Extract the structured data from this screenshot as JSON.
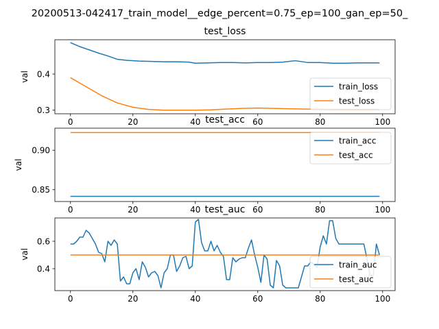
{
  "suptitle": "20200513-042417_train_model__edge_percent=0.75_ep=100_gan_ep=50_",
  "colors": {
    "series1": "#1f77b4",
    "series2": "#ff7f0e"
  },
  "chart_data": [
    {
      "type": "line",
      "title": "test_loss",
      "ylabel": "val",
      "xlabel": "",
      "xlim": [
        -5,
        104
      ],
      "ylim": [
        0.29,
        0.495
      ],
      "xticks": [
        0,
        20,
        40,
        60,
        80,
        100
      ],
      "yticks": [
        0.3,
        0.4
      ],
      "ytick_labels": [
        "0.3",
        "0.4"
      ],
      "legend": "lower-right",
      "series": [
        {
          "name": "train_loss",
          "color": "#1f77b4",
          "x": [
            0,
            3,
            6,
            9,
            12,
            15,
            18,
            22,
            26,
            30,
            34,
            38,
            40,
            44,
            48,
            52,
            56,
            60,
            64,
            68,
            72,
            76,
            80,
            84,
            88,
            92,
            96,
            99
          ],
          "y": [
            0.487,
            0.476,
            0.467,
            0.458,
            0.45,
            0.441,
            0.438,
            0.436,
            0.435,
            0.434,
            0.434,
            0.433,
            0.43,
            0.431,
            0.432,
            0.432,
            0.431,
            0.432,
            0.432,
            0.433,
            0.437,
            0.432,
            0.432,
            0.43,
            0.43,
            0.431,
            0.431,
            0.431
          ]
        },
        {
          "name": "test_loss",
          "color": "#ff7f0e",
          "x": [
            0,
            5,
            10,
            15,
            20,
            25,
            30,
            35,
            40,
            45,
            50,
            55,
            60,
            65,
            70,
            75,
            80,
            85,
            90,
            95,
            99
          ],
          "y": [
            0.39,
            0.365,
            0.34,
            0.32,
            0.308,
            0.302,
            0.3,
            0.3,
            0.3,
            0.301,
            0.303,
            0.305,
            0.306,
            0.305,
            0.304,
            0.303,
            0.303,
            0.302,
            0.302,
            0.302,
            0.302
          ]
        }
      ]
    },
    {
      "type": "line",
      "title": "test_acc",
      "ylabel": "val",
      "xlabel": "",
      "xlim": [
        -5,
        104
      ],
      "ylim": [
        0.835,
        0.928
      ],
      "xticks": [
        0,
        20,
        40,
        60,
        80,
        100
      ],
      "yticks": [
        0.85,
        0.9
      ],
      "ytick_labels": [
        "0.85",
        "0.90"
      ],
      "legend": "upper-right",
      "series": [
        {
          "name": "train_acc",
          "color": "#1f77b4",
          "x": [
            0,
            99
          ],
          "y": [
            0.8415,
            0.8415
          ]
        },
        {
          "name": "test_acc",
          "color": "#ff7f0e",
          "x": [
            0,
            99
          ],
          "y": [
            0.9225,
            0.9225
          ]
        }
      ]
    },
    {
      "type": "line",
      "title": "test_auc",
      "ylabel": "val",
      "xlabel": "",
      "xlim": [
        -5,
        104
      ],
      "ylim": [
        0.24,
        0.77
      ],
      "xticks": [
        0,
        20,
        40,
        60,
        80,
        100
      ],
      "yticks": [
        0.4,
        0.6
      ],
      "ytick_labels": [
        "0.4",
        "0.6"
      ],
      "legend": "lower-right",
      "series": [
        {
          "name": "train_auc",
          "color": "#1f77b4",
          "x": [
            0,
            1,
            2,
            3,
            4,
            5,
            6,
            7,
            8,
            9,
            10,
            11,
            12,
            13,
            14,
            15,
            16,
            17,
            18,
            19,
            20,
            21,
            22,
            23,
            24,
            25,
            26,
            27,
            28,
            29,
            30,
            31,
            32,
            33,
            34,
            35,
            36,
            37,
            38,
            39,
            40,
            41,
            42,
            43,
            44,
            45,
            46,
            47,
            48,
            49,
            50,
            51,
            52,
            53,
            54,
            55,
            56,
            57,
            58,
            59,
            60,
            61,
            62,
            63,
            64,
            65,
            66,
            67,
            68,
            69,
            70,
            71,
            72,
            73,
            74,
            75,
            76,
            77,
            78,
            79,
            80,
            81,
            82,
            83,
            84,
            85,
            86,
            87,
            88,
            89,
            90,
            91,
            92,
            93,
            94,
            95,
            96,
            97,
            98,
            99
          ],
          "y": [
            0.58,
            0.58,
            0.6,
            0.63,
            0.63,
            0.68,
            0.66,
            0.62,
            0.58,
            0.52,
            0.51,
            0.45,
            0.6,
            0.57,
            0.61,
            0.58,
            0.31,
            0.34,
            0.29,
            0.29,
            0.37,
            0.4,
            0.32,
            0.45,
            0.41,
            0.34,
            0.37,
            0.38,
            0.35,
            0.26,
            0.37,
            0.4,
            0.5,
            0.5,
            0.38,
            0.42,
            0.48,
            0.49,
            0.4,
            0.42,
            0.74,
            0.76,
            0.59,
            0.53,
            0.53,
            0.6,
            0.53,
            0.57,
            0.52,
            0.49,
            0.32,
            0.32,
            0.48,
            0.45,
            0.47,
            0.48,
            0.48,
            0.55,
            0.61,
            0.5,
            0.41,
            0.3,
            0.5,
            0.47,
            0.28,
            0.26,
            0.46,
            0.42,
            0.28,
            0.26,
            0.26,
            0.26,
            0.26,
            0.26,
            0.34,
            0.42,
            0.42,
            0.45,
            0.43,
            0.41,
            0.56,
            0.64,
            0.58,
            0.75,
            0.75,
            0.62,
            0.58,
            0.58,
            0.58,
            0.58,
            0.58,
            0.58,
            0.58,
            0.58,
            0.58,
            0.47,
            0.35,
            0.35,
            0.58,
            0.5
          ]
        },
        {
          "name": "test_auc",
          "color": "#ff7f0e",
          "x": [
            0,
            99
          ],
          "y": [
            0.5,
            0.5
          ]
        }
      ]
    }
  ]
}
